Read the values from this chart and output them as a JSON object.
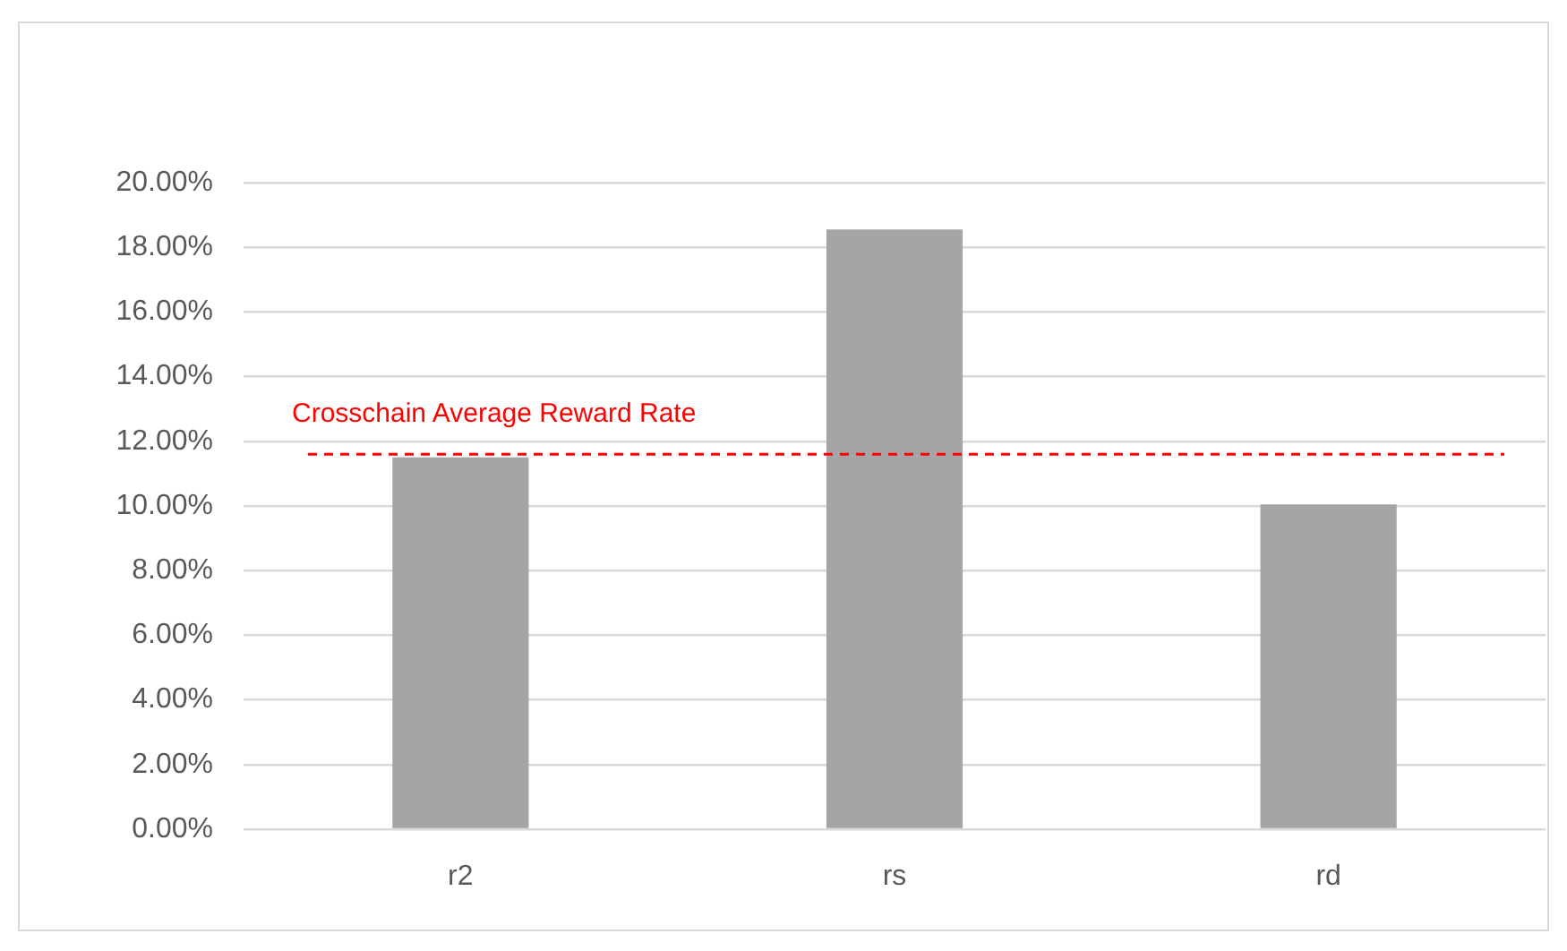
{
  "chart_data": {
    "type": "bar",
    "categories": [
      "r2",
      "rs",
      "rd"
    ],
    "values": [
      11.5,
      18.55,
      10.05
    ],
    "color": "#a5a5a5",
    "ylim": [
      0,
      20
    ],
    "yticks": [
      {
        "value": 0,
        "label": "0.00%"
      },
      {
        "value": 2,
        "label": "2.00%"
      },
      {
        "value": 4,
        "label": "4.00%"
      },
      {
        "value": 6,
        "label": "6.00%"
      },
      {
        "value": 8,
        "label": "8.00%"
      },
      {
        "value": 10,
        "label": "10.00%"
      },
      {
        "value": 12,
        "label": "12.00%"
      },
      {
        "value": 14,
        "label": "14.00%"
      },
      {
        "value": 16,
        "label": "16.00%"
      },
      {
        "value": 18,
        "label": "18.00%"
      },
      {
        "value": 20,
        "label": "20.00%"
      }
    ],
    "grid": "y",
    "ref_lines": [
      {
        "axis": "y",
        "value": 11.6,
        "label": "Crosschain Average Reward Rate",
        "color": "#ff0000",
        "line_style": "dashed"
      }
    ]
  }
}
